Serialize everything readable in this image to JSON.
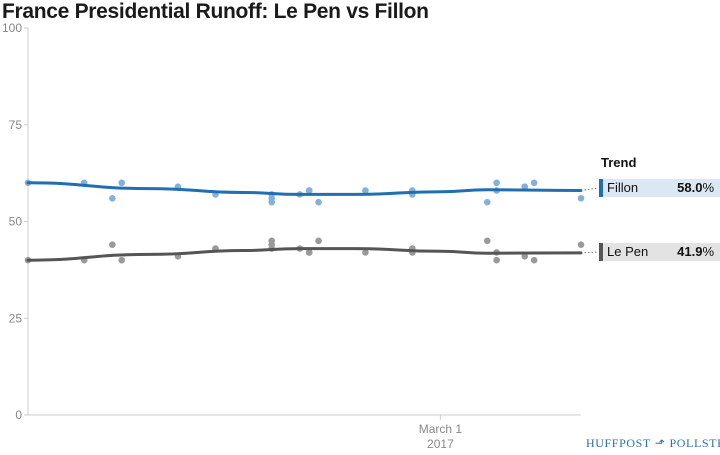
{
  "title": "France Presidential Runoff: Le Pen vs Fillon",
  "trend_heading": "Trend",
  "legend": [
    {
      "name": "Fillon",
      "value": "58.0",
      "unit": "%",
      "color": "#1f6fb2",
      "bg": "#dbe7f3"
    },
    {
      "name": "Le Pen",
      "value": "41.9",
      "unit": "%",
      "color": "#555555",
      "bg": "#e3e3e3"
    }
  ],
  "brand": {
    "left": "HUFFPOST",
    "right": "POLLSTER",
    "color": "#2e6fa8"
  },
  "chart_data": {
    "type": "scatter",
    "title": "France Presidential Runoff: Le Pen vs Fillon",
    "xlabel": "",
    "ylabel": "",
    "ylim": [
      0,
      100
    ],
    "yticks": [
      0,
      25,
      50,
      75,
      100
    ],
    "xlim": [
      "2017-01-16",
      "2017-03-16"
    ],
    "xticks": [
      {
        "date": "2017-03-01",
        "label": "March 1",
        "sublabel": "2017"
      }
    ],
    "grid": false,
    "series": [
      {
        "name": "Fillon",
        "color": "#1f6fb2",
        "trend": [
          {
            "date": "2017-01-16",
            "value": 60.0
          },
          {
            "date": "2017-01-29",
            "value": 58.5
          },
          {
            "date": "2017-02-08",
            "value": 57.5
          },
          {
            "date": "2017-02-14",
            "value": 57.0
          },
          {
            "date": "2017-02-20",
            "value": 57.0
          },
          {
            "date": "2017-03-01",
            "value": 57.7
          },
          {
            "date": "2017-03-06",
            "value": 58.2
          },
          {
            "date": "2017-03-16",
            "value": 58.0
          }
        ],
        "points": [
          {
            "date": "2017-01-16",
            "value": 60
          },
          {
            "date": "2017-01-22",
            "value": 60
          },
          {
            "date": "2017-01-25",
            "value": 56
          },
          {
            "date": "2017-01-26",
            "value": 60
          },
          {
            "date": "2017-02-01",
            "value": 59
          },
          {
            "date": "2017-02-05",
            "value": 57
          },
          {
            "date": "2017-02-11",
            "value": 55
          },
          {
            "date": "2017-02-11",
            "value": 56
          },
          {
            "date": "2017-02-11",
            "value": 57
          },
          {
            "date": "2017-02-14",
            "value": 57
          },
          {
            "date": "2017-02-15",
            "value": 58
          },
          {
            "date": "2017-02-15",
            "value": 58
          },
          {
            "date": "2017-02-16",
            "value": 55
          },
          {
            "date": "2017-02-21",
            "value": 58
          },
          {
            "date": "2017-02-26",
            "value": 58
          },
          {
            "date": "2017-02-26",
            "value": 57
          },
          {
            "date": "2017-03-06",
            "value": 55
          },
          {
            "date": "2017-03-07",
            "value": 60
          },
          {
            "date": "2017-03-07",
            "value": 58
          },
          {
            "date": "2017-03-10",
            "value": 59
          },
          {
            "date": "2017-03-11",
            "value": 60
          },
          {
            "date": "2017-03-16",
            "value": 56
          }
        ]
      },
      {
        "name": "Le Pen",
        "color": "#555555",
        "trend": [
          {
            "date": "2017-01-16",
            "value": 40.0
          },
          {
            "date": "2017-01-29",
            "value": 41.5
          },
          {
            "date": "2017-02-08",
            "value": 42.5
          },
          {
            "date": "2017-02-14",
            "value": 43.0
          },
          {
            "date": "2017-02-20",
            "value": 43.0
          },
          {
            "date": "2017-03-01",
            "value": 42.3
          },
          {
            "date": "2017-03-06",
            "value": 41.8
          },
          {
            "date": "2017-03-16",
            "value": 41.9
          }
        ],
        "points": [
          {
            "date": "2017-01-16",
            "value": 40
          },
          {
            "date": "2017-01-22",
            "value": 40
          },
          {
            "date": "2017-01-25",
            "value": 44
          },
          {
            "date": "2017-01-26",
            "value": 40
          },
          {
            "date": "2017-02-01",
            "value": 41
          },
          {
            "date": "2017-02-05",
            "value": 43
          },
          {
            "date": "2017-02-11",
            "value": 45
          },
          {
            "date": "2017-02-11",
            "value": 44
          },
          {
            "date": "2017-02-11",
            "value": 43
          },
          {
            "date": "2017-02-14",
            "value": 43
          },
          {
            "date": "2017-02-15",
            "value": 42
          },
          {
            "date": "2017-02-15",
            "value": 42
          },
          {
            "date": "2017-02-16",
            "value": 45
          },
          {
            "date": "2017-02-21",
            "value": 42
          },
          {
            "date": "2017-02-26",
            "value": 42
          },
          {
            "date": "2017-02-26",
            "value": 43
          },
          {
            "date": "2017-03-06",
            "value": 45
          },
          {
            "date": "2017-03-07",
            "value": 40
          },
          {
            "date": "2017-03-07",
            "value": 42
          },
          {
            "date": "2017-03-10",
            "value": 41
          },
          {
            "date": "2017-03-11",
            "value": 40
          },
          {
            "date": "2017-03-16",
            "value": 44
          }
        ]
      }
    ]
  }
}
